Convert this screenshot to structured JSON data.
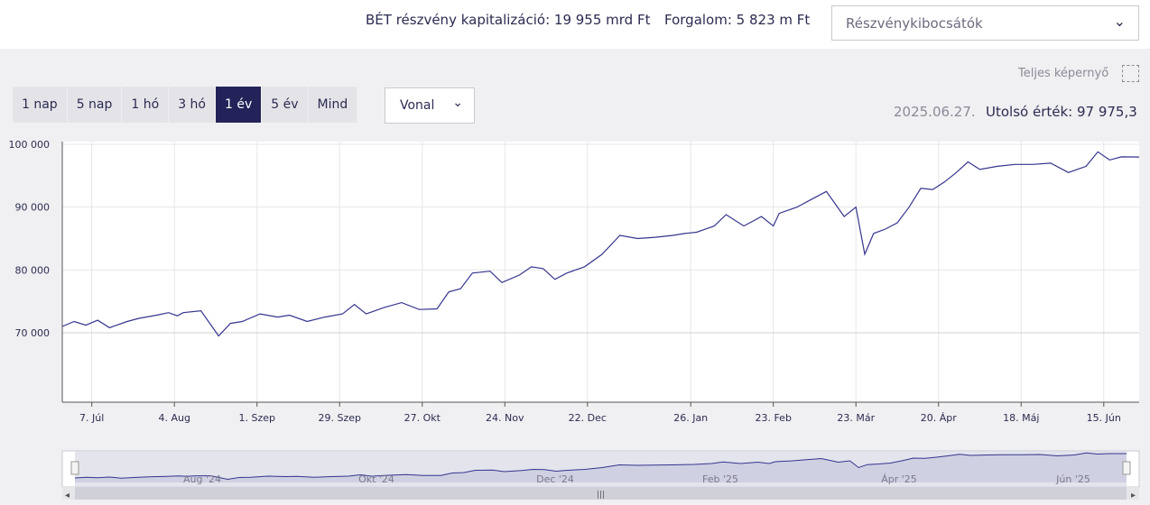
{
  "header": {
    "capitalization": "BÉT részvény kapitalizáció: 19 955 mrd Ft",
    "turnover": "Forgalom: 5 823 m Ft",
    "issuer_select": "Részvénykibocsátók"
  },
  "controls": {
    "fullscreen_label": "Teljes képernyő",
    "ranges": [
      {
        "label": "1 nap",
        "active": false
      },
      {
        "label": "5 nap",
        "active": false
      },
      {
        "label": "1 hó",
        "active": false
      },
      {
        "label": "3 hó",
        "active": false
      },
      {
        "label": "1 év",
        "active": true
      },
      {
        "label": "5 év",
        "active": false
      },
      {
        "label": "Mind",
        "active": false
      }
    ],
    "chart_type": "Vonal",
    "last_date": "2025.06.27.",
    "last_value_label": "Utolsó érték: 97 975,3"
  },
  "colors": {
    "line": "#35358f",
    "active_range": "#23235a",
    "grid": "#e6e6ea"
  },
  "chart_data": {
    "type": "line",
    "ylim": [
      70000,
      100000
    ],
    "y_ticks": [
      70000,
      80000,
      90000,
      100000
    ],
    "y_tick_labels": [
      "70 000",
      "80 000",
      "90 000",
      "100 000"
    ],
    "x_ticks": [
      "2024-07-07",
      "2024-08-04",
      "2024-09-01",
      "2024-09-29",
      "2024-10-27",
      "2024-11-24",
      "2024-12-22",
      "2025-01-26",
      "2025-02-23",
      "2025-03-23",
      "2025-04-20",
      "2025-05-18",
      "2025-06-15"
    ],
    "x_tick_labels": [
      "7. Júl",
      "4. Aug",
      "1. Szep",
      "29. Szep",
      "27. Okt",
      "24. Nov",
      "22. Dec",
      "26. Jan",
      "23. Feb",
      "23. Már",
      "20. Ápr",
      "18. Máj",
      "15. Jún"
    ],
    "x": [
      "2024-06-27",
      "2024-07-01",
      "2024-07-05",
      "2024-07-09",
      "2024-07-13",
      "2024-07-19",
      "2024-07-23",
      "2024-07-29",
      "2024-08-02",
      "2024-08-05",
      "2024-08-07",
      "2024-08-13",
      "2024-08-19",
      "2024-08-23",
      "2024-08-27",
      "2024-09-02",
      "2024-09-08",
      "2024-09-12",
      "2024-09-18",
      "2024-09-24",
      "2024-09-30",
      "2024-10-04",
      "2024-10-08",
      "2024-10-14",
      "2024-10-20",
      "2024-10-26",
      "2024-11-01",
      "2024-11-05",
      "2024-11-09",
      "2024-11-13",
      "2024-11-19",
      "2024-11-23",
      "2024-11-29",
      "2024-12-03",
      "2024-12-07",
      "2024-12-11",
      "2024-12-15",
      "2024-12-21",
      "2024-12-27",
      "2025-01-02",
      "2025-01-08",
      "2025-01-14",
      "2025-01-20",
      "2025-01-24",
      "2025-01-28",
      "2025-02-03",
      "2025-02-07",
      "2025-02-13",
      "2025-02-19",
      "2025-02-23",
      "2025-02-25",
      "2025-03-03",
      "2025-03-07",
      "2025-03-13",
      "2025-03-19",
      "2025-03-23",
      "2025-03-26",
      "2025-03-29",
      "2025-04-02",
      "2025-04-06",
      "2025-04-10",
      "2025-04-14",
      "2025-04-18",
      "2025-04-22",
      "2025-04-26",
      "2025-04-30",
      "2025-05-04",
      "2025-05-10",
      "2025-05-16",
      "2025-05-22",
      "2025-05-28",
      "2025-06-03",
      "2025-06-09",
      "2025-06-13",
      "2025-06-17",
      "2025-06-21",
      "2025-06-27"
    ],
    "series": [
      {
        "values": [
          71000,
          71800,
          71200,
          72000,
          70800,
          71800,
          72300,
          72800,
          73200,
          72700,
          73200,
          73500,
          69500,
          71500,
          71800,
          73000,
          72500,
          72800,
          71800,
          72500,
          73000,
          74500,
          73000,
          74000,
          74800,
          73700,
          73800,
          76500,
          77000,
          79500,
          79800,
          78000,
          79200,
          80500,
          80200,
          78500,
          79500,
          80500,
          82500,
          85500,
          85000,
          85200,
          85500,
          85800,
          86000,
          87000,
          88800,
          87000,
          88500,
          87000,
          89000,
          90000,
          91000,
          92500,
          88500,
          90000,
          82500,
          85800,
          86500,
          87500,
          90000,
          93000,
          92800,
          94000,
          95500,
          97200,
          96000,
          96500,
          96800,
          96800,
          97000,
          95500,
          96500,
          98800,
          97500,
          98000,
          97975
        ]
      }
    ]
  },
  "navigator": {
    "labels": [
      "Aug '24",
      "Okt '24",
      "Dec '24",
      "Feb '25",
      "Ápr '25",
      "Jún '25"
    ]
  }
}
